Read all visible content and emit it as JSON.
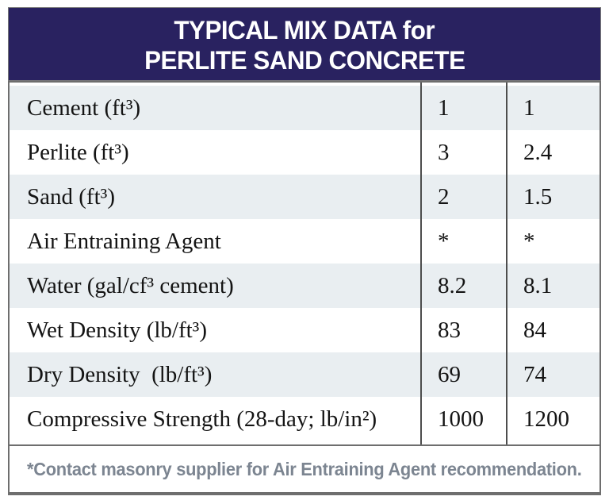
{
  "table": {
    "title_line1": "TYPICAL MIX DATA for",
    "title_line2": "PERLITE SAND CONCRETE",
    "rows": [
      {
        "label": "Cement (ft³)",
        "col1": "1",
        "col2": "1"
      },
      {
        "label": "Perlite (ft³)",
        "col1": "3",
        "col2": "2.4"
      },
      {
        "label": "Sand (ft³)",
        "col1": "2",
        "col2": "1.5"
      },
      {
        "label": "Air Entraining Agent",
        "col1": "*",
        "col2": "*"
      },
      {
        "label": "Water (gal/cf³ cement)",
        "col1": "8.2",
        "col2": "8.1"
      },
      {
        "label": "Wet Density (lb/ft³)",
        "col1": "83",
        "col2": "84"
      },
      {
        "label": "Dry Density  (lb/ft³)",
        "col1": "69",
        "col2": "74"
      },
      {
        "label": "Compressive Strength (28-day; lb/in²)",
        "col1": "1000",
        "col2": "1200"
      }
    ],
    "footnote": "*Contact masonry supplier for Air Entraining Agent recommendation.",
    "colors": {
      "header_bg": "#292260",
      "header_text": "#ffffff",
      "row_alt_bg": "#e9eef1",
      "border": "#6e6e6e",
      "divider": "#4d4d4d",
      "body_text": "#141414",
      "footnote_text": "#7c8591"
    }
  },
  "chart_data": {
    "type": "table",
    "title": "TYPICAL MIX DATA for PERLITE SAND CONCRETE",
    "rows": [
      [
        "Cement (ft³)",
        "1",
        "1"
      ],
      [
        "Perlite (ft³)",
        "3",
        "2.4"
      ],
      [
        "Sand (ft³)",
        "2",
        "1.5"
      ],
      [
        "Air Entraining Agent",
        "*",
        "*"
      ],
      [
        "Water (gal/cf³ cement)",
        "8.2",
        "8.1"
      ],
      [
        "Wet Density (lb/ft³)",
        "83",
        "84"
      ],
      [
        "Dry Density (lb/ft³)",
        "69",
        "74"
      ],
      [
        "Compressive Strength (28-day; lb/in²)",
        "1000",
        "1200"
      ]
    ],
    "footnote": "*Contact masonry supplier for Air Entraining Agent recommendation.",
    "layout": {
      "value_columns": 2,
      "alternating_row_shading": true,
      "grid": "vertical-dividers-only"
    }
  }
}
